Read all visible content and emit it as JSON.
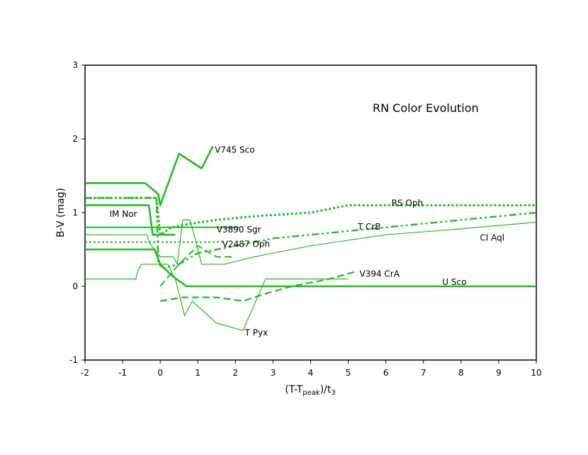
{
  "chart_data": {
    "type": "line",
    "title": "RN Color Evolution",
    "xlabel_main": "(T-T",
    "xlabel_sub": "peak",
    "xlabel_mid": ")/t",
    "xlabel_sub2": "3",
    "ylabel": "B-V (mag)",
    "xlim": [
      -2,
      10
    ],
    "ylim": [
      -1,
      3
    ],
    "xticks": [
      -2,
      -1,
      0,
      1,
      2,
      3,
      4,
      5,
      6,
      7,
      8,
      9,
      10
    ],
    "yticks": [
      -1,
      0,
      1,
      2,
      3
    ],
    "grid": false,
    "line_color": "#22bb22",
    "series": [
      {
        "name": "V745 Sco",
        "style": "solid",
        "width": 2.6,
        "x": [
          -2,
          -0.4,
          -0.05,
          0.0,
          0.5,
          1.1,
          1.4
        ],
        "y": [
          1.4,
          1.4,
          1.25,
          1.1,
          1.8,
          1.6,
          1.9
        ]
      },
      {
        "name": "RS Oph",
        "style": "dotted",
        "width": 3,
        "x": [
          -2,
          -0.1,
          0.0,
          0.3,
          0.8,
          1.5,
          2.5,
          4,
          5,
          6,
          10
        ],
        "y": [
          1.2,
          1.2,
          0.7,
          0.8,
          0.85,
          0.9,
          0.95,
          1.0,
          1.1,
          1.1,
          1.1
        ]
      },
      {
        "name": "T CrB",
        "style": "dashdot",
        "width": 2.4,
        "x": [
          -2,
          -0.1,
          -0.05,
          0.1,
          0.5,
          1.0,
          1.5,
          2.0,
          3.0,
          4.0,
          5.0,
          6.0,
          8.0,
          10
        ],
        "y": [
          1.2,
          1.2,
          0.3,
          0.25,
          0.3,
          0.45,
          0.5,
          0.55,
          0.65,
          0.7,
          0.75,
          0.8,
          0.9,
          1.0
        ]
      },
      {
        "name": "IM Nor",
        "style": "solid",
        "width": 2.6,
        "x": [
          -2,
          -0.3,
          -0.2,
          0.0,
          0.4
        ],
        "y": [
          1.1,
          1.1,
          0.7,
          0.7,
          0.7
        ]
      },
      {
        "name": "V3890 Sgr",
        "style": "solid",
        "width": 2,
        "x": [
          -2,
          2.1
        ],
        "y": [
          0.8,
          0.8
        ]
      },
      {
        "name": "V2487 Oph",
        "style": "dotted",
        "width": 2,
        "x": [
          -2,
          -0.2,
          0.0,
          1.7
        ],
        "y": [
          0.6,
          0.6,
          0.6,
          0.6
        ]
      },
      {
        "name": "CI Aql",
        "style": "solid",
        "width": 1.2,
        "x": [
          -2,
          -0.35,
          -0.3,
          0.0,
          0.35,
          0.45,
          0.6,
          0.8,
          1.1,
          1.7,
          2.5,
          4.0,
          6.0,
          8.0,
          10
        ],
        "y": [
          0.7,
          0.7,
          0.6,
          0.4,
          0.4,
          0.3,
          0.9,
          0.9,
          0.3,
          0.3,
          0.4,
          0.55,
          0.7,
          0.78,
          0.87
        ]
      },
      {
        "name": "U Sco",
        "style": "solid",
        "width": 2.6,
        "x": [
          -2,
          -0.2,
          -0.15,
          0.0,
          0.3,
          0.7,
          1.0,
          10
        ],
        "y": [
          0.5,
          0.5,
          0.5,
          0.3,
          0.15,
          0.0,
          0.0,
          0.0
        ]
      },
      {
        "name": "V394 CrA",
        "style": "dashed",
        "width": 2.2,
        "x": [
          0.0,
          0.6,
          1.5,
          2.2,
          2.8,
          3.5,
          4.5,
          5.2
        ],
        "y": [
          -0.2,
          -0.15,
          -0.15,
          -0.2,
          -0.1,
          0.0,
          0.1,
          0.2
        ]
      },
      {
        "name": "T Pyx",
        "style": "solid",
        "width": 1.2,
        "x": [
          -2,
          -0.65,
          -0.6,
          -0.5,
          -0.3,
          -0.1,
          0.0,
          0.2,
          0.4,
          0.65,
          0.85,
          1.5,
          2.2,
          2.8,
          5.0
        ],
        "y": [
          0.1,
          0.1,
          0.2,
          0.3,
          0.3,
          0.3,
          0.3,
          0.3,
          0.1,
          -0.4,
          -0.2,
          -0.5,
          -0.6,
          0.1,
          0.1
        ]
      },
      {
        "name": "",
        "style": "dashed",
        "width": 2,
        "x": [
          0.0,
          0.5,
          1.0,
          1.5,
          2.0
        ],
        "y": [
          0.0,
          0.3,
          0.55,
          0.4,
          0.4
        ]
      }
    ],
    "labels": [
      {
        "text": "V745 Sco",
        "x": 1.45,
        "y": 1.85
      },
      {
        "text": "RS Oph",
        "x": 6.15,
        "y": 1.13
      },
      {
        "text": "IM Nor",
        "x": -1.35,
        "y": 0.98
      },
      {
        "text": "V3890 Sgr",
        "x": 1.5,
        "y": 0.77
      },
      {
        "text": "T CrB",
        "x": 5.25,
        "y": 0.81
      },
      {
        "text": "CI Aql",
        "x": 8.5,
        "y": 0.66
      },
      {
        "text": "V2487 Oph",
        "x": 1.65,
        "y": 0.57
      },
      {
        "text": "V394 CrA",
        "x": 5.3,
        "y": 0.17
      },
      {
        "text": "U Sco",
        "x": 7.5,
        "y": 0.06
      },
      {
        "text": "T Pyx",
        "x": 2.25,
        "y": -0.63
      }
    ]
  }
}
